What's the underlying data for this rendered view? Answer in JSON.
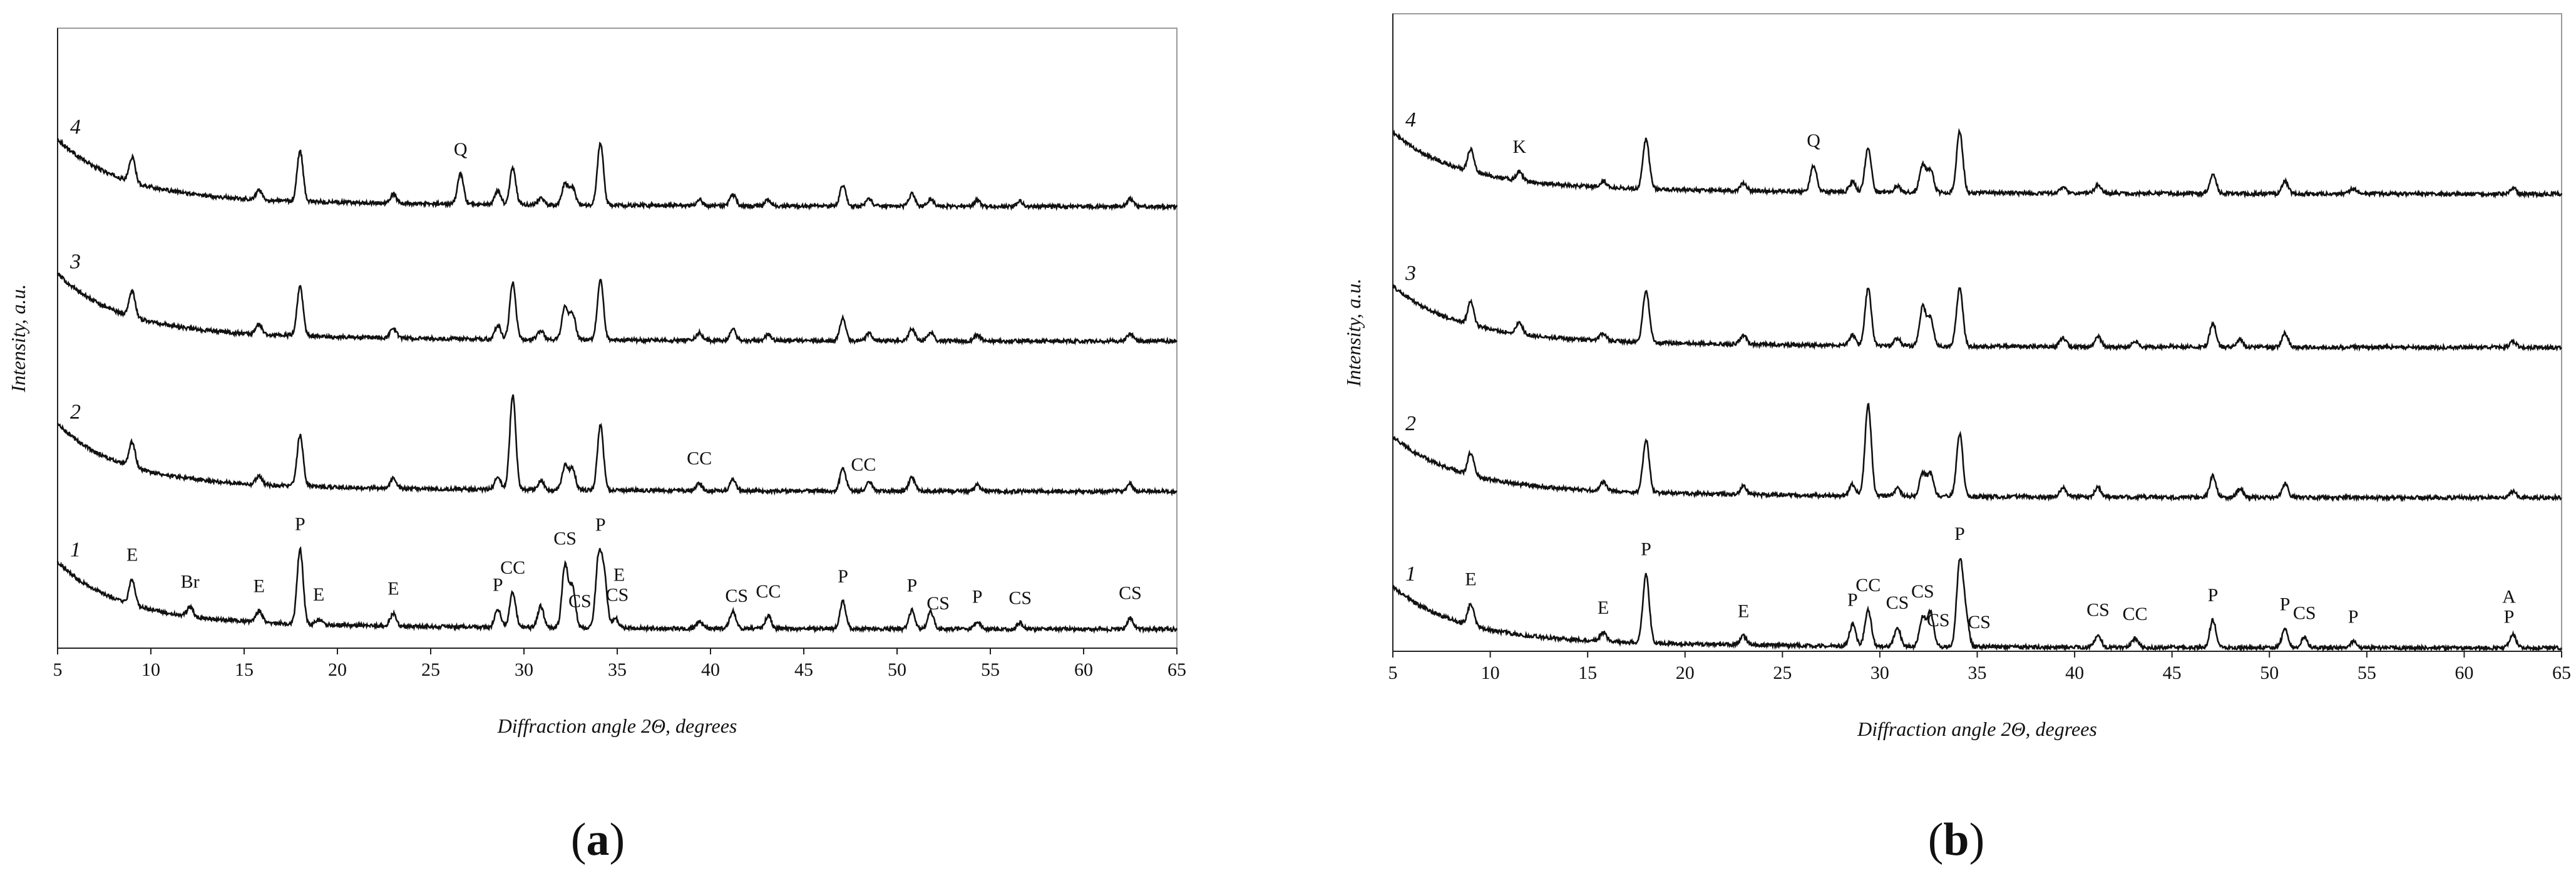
{
  "chart_data": [
    {
      "type": "line",
      "panel_label": "(a)",
      "panel_letter": "a",
      "xlabel": "Diffraction angle 2Θ, degrees",
      "ylabel": "Intensity, a.u.",
      "xlim": [
        5,
        65
      ],
      "xticks": [
        "5",
        "10",
        "15",
        "20",
        "25",
        "30",
        "35",
        "40",
        "45",
        "50",
        "55",
        "60",
        "65"
      ],
      "grid": false,
      "series": [
        {
          "name": "4",
          "peaks": [
            [
              9.0,
              40
            ],
            [
              15.8,
              15
            ],
            [
              18.0,
              80
            ],
            [
              23.0,
              14
            ],
            [
              26.6,
              48
            ],
            [
              28.6,
              22
            ],
            [
              29.4,
              58
            ],
            [
              30.9,
              10
            ],
            [
              32.2,
              34
            ],
            [
              32.6,
              28
            ],
            [
              34.1,
              100
            ],
            [
              39.4,
              10
            ],
            [
              41.2,
              18
            ],
            [
              43.1,
              10
            ],
            [
              47.1,
              34
            ],
            [
              48.5,
              12
            ],
            [
              50.8,
              20
            ],
            [
              51.8,
              12
            ],
            [
              54.3,
              10
            ],
            [
              56.6,
              8
            ],
            [
              62.5,
              12
            ]
          ],
          "labels": [
            {
              "text": "Q",
              "x": 26.6
            }
          ]
        },
        {
          "name": "3",
          "peaks": [
            [
              9.0,
              42
            ],
            [
              15.8,
              16
            ],
            [
              18.0,
              78
            ],
            [
              23.0,
              16
            ],
            [
              28.6,
              22
            ],
            [
              29.4,
              92
            ],
            [
              30.9,
              14
            ],
            [
              32.2,
              52
            ],
            [
              32.6,
              42
            ],
            [
              34.1,
              98
            ],
            [
              39.4,
              12
            ],
            [
              41.2,
              18
            ],
            [
              43.1,
              10
            ],
            [
              47.1,
              36
            ],
            [
              48.5,
              12
            ],
            [
              50.8,
              20
            ],
            [
              51.8,
              14
            ],
            [
              54.3,
              10
            ],
            [
              62.5,
              12
            ]
          ],
          "labels": []
        },
        {
          "name": "2",
          "peaks": [
            [
              9.0,
              40
            ],
            [
              15.8,
              14
            ],
            [
              18.0,
              82
            ],
            [
              23.0,
              16
            ],
            [
              28.6,
              20
            ],
            [
              29.4,
              150
            ],
            [
              30.9,
              14
            ],
            [
              32.2,
              38
            ],
            [
              32.6,
              34
            ],
            [
              34.1,
              104
            ],
            [
              39.4,
              12
            ],
            [
              41.2,
              18
            ],
            [
              47.1,
              36
            ],
            [
              48.5,
              16
            ],
            [
              50.8,
              22
            ],
            [
              54.3,
              10
            ],
            [
              62.5,
              12
            ]
          ],
          "labels": [
            {
              "text": "CC",
              "x": 39.4
            },
            {
              "text": "CC",
              "x": 48.2
            }
          ]
        },
        {
          "name": "1",
          "peaks": [
            [
              9.0,
              40
            ],
            [
              12.1,
              16
            ],
            [
              15.8,
              18
            ],
            [
              18.0,
              120
            ],
            [
              19.0,
              8
            ],
            [
              23.0,
              20
            ],
            [
              28.6,
              28
            ],
            [
              29.4,
              56
            ],
            [
              30.9,
              34
            ],
            [
              32.2,
              100
            ],
            [
              32.6,
              66
            ],
            [
              34.0,
              108
            ],
            [
              34.3,
              80
            ],
            [
              34.9,
              16
            ],
            [
              39.4,
              10
            ],
            [
              41.2,
              28
            ],
            [
              43.1,
              20
            ],
            [
              47.1,
              44
            ],
            [
              50.8,
              30
            ],
            [
              51.8,
              28
            ],
            [
              54.3,
              12
            ],
            [
              56.6,
              10
            ],
            [
              62.5,
              18
            ]
          ],
          "labels": [
            {
              "text": "E",
              "x": 9.0
            },
            {
              "text": "Br",
              "x": 12.1
            },
            {
              "text": "E",
              "x": 15.8
            },
            {
              "text": "P",
              "x": 18.0
            },
            {
              "text": "E",
              "x": 19.0
            },
            {
              "text": "E",
              "x": 23.0
            },
            {
              "text": "P",
              "x": 28.6
            },
            {
              "text": "CC",
              "x": 29.4
            },
            {
              "text": "CS",
              "x": 32.2
            },
            {
              "text": "CS",
              "x": 33.0
            },
            {
              "text": "P",
              "x": 34.1
            },
            {
              "text": "CS",
              "x": 35.0
            },
            {
              "text": "E",
              "x": 35.1
            },
            {
              "text": "CS",
              "x": 41.4
            },
            {
              "text": "CC",
              "x": 43.1
            },
            {
              "text": "P",
              "x": 47.1
            },
            {
              "text": "P",
              "x": 50.8
            },
            {
              "text": "CS",
              "x": 52.2
            },
            {
              "text": "P",
              "x": 54.3
            },
            {
              "text": "CS",
              "x": 56.6
            },
            {
              "text": "CS",
              "x": 62.5
            }
          ]
        }
      ]
    },
    {
      "type": "line",
      "panel_label": "(b)",
      "panel_letter": "b",
      "xlabel": "Diffraction angle 2Θ, degrees",
      "ylabel": "Intensity, a.u.",
      "xlim": [
        5,
        65
      ],
      "xticks": [
        "5",
        "10",
        "15",
        "20",
        "25",
        "30",
        "35",
        "40",
        "45",
        "50",
        "55",
        "60",
        "65"
      ],
      "grid": false,
      "series": [
        {
          "name": "4",
          "peaks": [
            [
              9.0,
              36
            ],
            [
              11.5,
              14
            ],
            [
              15.8,
              10
            ],
            [
              18.0,
              80
            ],
            [
              23.0,
              12
            ],
            [
              26.6,
              42
            ],
            [
              28.6,
              16
            ],
            [
              29.4,
              72
            ],
            [
              30.9,
              10
            ],
            [
              32.2,
              44
            ],
            [
              32.6,
              36
            ],
            [
              34.1,
              98
            ],
            [
              39.4,
              10
            ],
            [
              41.2,
              14
            ],
            [
              47.1,
              32
            ],
            [
              50.8,
              20
            ],
            [
              54.3,
              8
            ],
            [
              62.5,
              10
            ]
          ],
          "labels": [
            {
              "text": "K",
              "x": 11.5
            },
            {
              "text": "Q",
              "x": 26.6
            }
          ]
        },
        {
          "name": "3",
          "peaks": [
            [
              9.0,
              36
            ],
            [
              11.5,
              18
            ],
            [
              15.8,
              12
            ],
            [
              18.0,
              84
            ],
            [
              23.0,
              14
            ],
            [
              28.6,
              16
            ],
            [
              29.4,
              92
            ],
            [
              30.9,
              12
            ],
            [
              32.2,
              62
            ],
            [
              32.6,
              44
            ],
            [
              34.1,
              94
            ],
            [
              39.4,
              14
            ],
            [
              41.2,
              16
            ],
            [
              43.1,
              10
            ],
            [
              47.1,
              38
            ],
            [
              48.5,
              12
            ],
            [
              50.8,
              22
            ],
            [
              62.5,
              10
            ]
          ],
          "labels": []
        },
        {
          "name": "2",
          "peaks": [
            [
              9.0,
              36
            ],
            [
              15.8,
              14
            ],
            [
              18.0,
              84
            ],
            [
              23.0,
              14
            ],
            [
              28.6,
              18
            ],
            [
              29.4,
              146
            ],
            [
              30.9,
              12
            ],
            [
              32.2,
              36
            ],
            [
              32.6,
              36
            ],
            [
              34.1,
              100
            ],
            [
              39.4,
              14
            ],
            [
              41.2,
              16
            ],
            [
              47.1,
              34
            ],
            [
              48.5,
              14
            ],
            [
              50.8,
              22
            ],
            [
              62.5,
              10
            ]
          ],
          "labels": []
        },
        {
          "name": "1",
          "peaks": [
            [
              9.0,
              34
            ],
            [
              15.8,
              14
            ],
            [
              18.0,
              110
            ],
            [
              23.0,
              14
            ],
            [
              28.6,
              34
            ],
            [
              29.4,
              58
            ],
            [
              30.9,
              30
            ],
            [
              32.2,
              46
            ],
            [
              32.6,
              54
            ],
            [
              34.1,
              132
            ],
            [
              34.4,
              50
            ],
            [
              41.2,
              20
            ],
            [
              43.1,
              14
            ],
            [
              47.1,
              44
            ],
            [
              50.8,
              30
            ],
            [
              51.8,
              16
            ],
            [
              54.3,
              10
            ],
            [
              62.5,
              22
            ]
          ],
          "labels": [
            {
              "text": "E",
              "x": 9.0
            },
            {
              "text": "E",
              "x": 15.8
            },
            {
              "text": "P",
              "x": 18.0
            },
            {
              "text": "E",
              "x": 23.0
            },
            {
              "text": "P",
              "x": 28.6
            },
            {
              "text": "CC",
              "x": 29.4
            },
            {
              "text": "CS",
              "x": 30.9
            },
            {
              "text": "CS",
              "x": 32.2
            },
            {
              "text": "CS",
              "x": 33.0
            },
            {
              "text": "P",
              "x": 34.1
            },
            {
              "text": "CS",
              "x": 35.1
            },
            {
              "text": "CS",
              "x": 41.2
            },
            {
              "text": "CC",
              "x": 43.1
            },
            {
              "text": "P",
              "x": 47.1
            },
            {
              "text": "P",
              "x": 50.8
            },
            {
              "text": "CS",
              "x": 51.8
            },
            {
              "text": "P",
              "x": 54.3
            },
            {
              "text": "P",
              "x": 62.3
            },
            {
              "text": "A",
              "x": 62.3
            }
          ]
        }
      ]
    }
  ]
}
